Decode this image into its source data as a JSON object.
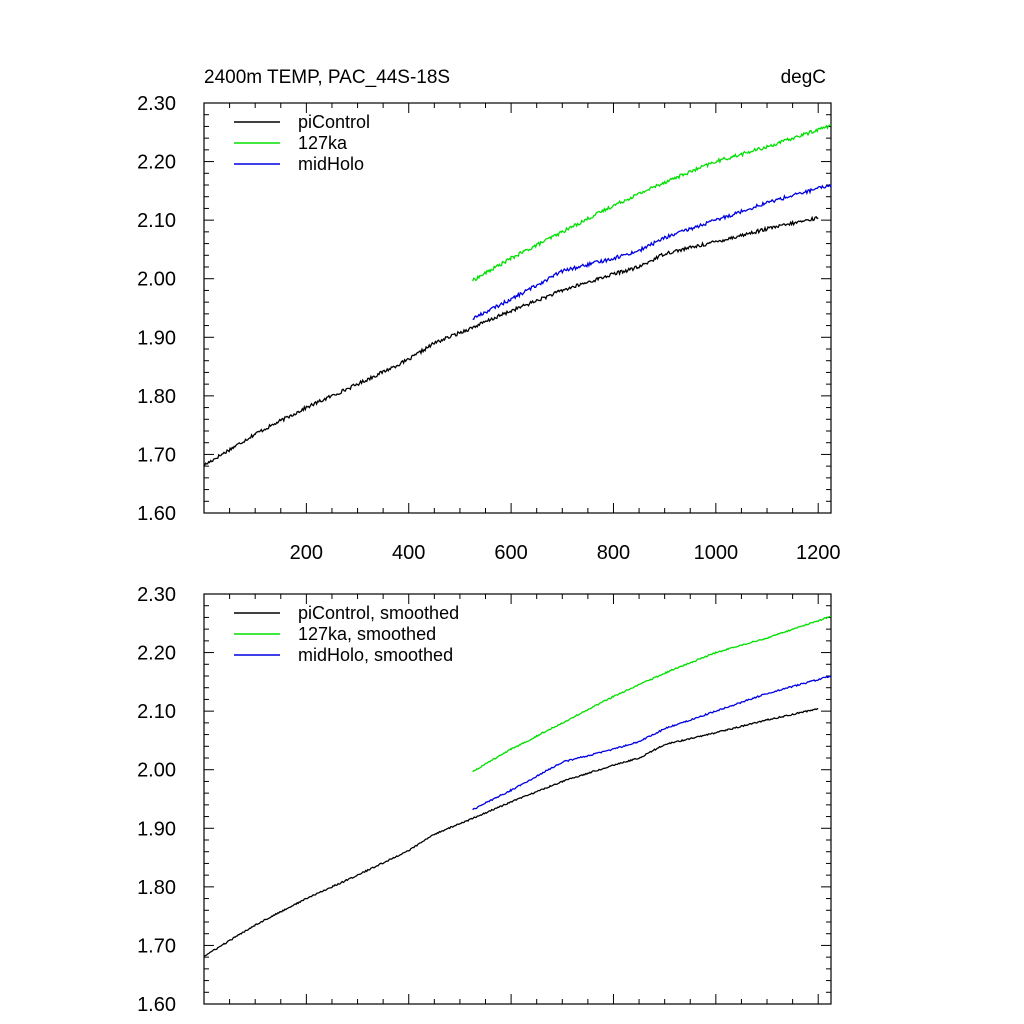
{
  "colors": {
    "piControl": "#000000",
    "127ka": "#00e000",
    "midHolo": "#0000e0"
  },
  "chart_data": [
    {
      "type": "line",
      "title_left": "2400m TEMP, PAC_44S-18S",
      "title_right": "degC",
      "xlim": [
        0,
        1225
      ],
      "ylim": [
        1.6,
        2.3
      ],
      "grid": false,
      "legend_position": "top-left",
      "x_ticks": [
        200,
        400,
        600,
        800,
        1000,
        1200
      ],
      "x_tick_labels": [
        "200",
        "400",
        "600",
        "800",
        "1000",
        "1200"
      ],
      "y_ticks": [
        1.6,
        1.7,
        1.8,
        1.9,
        2.0,
        2.1,
        2.2,
        2.3
      ],
      "y_tick_labels": [
        "1.60",
        "1.70",
        "1.80",
        "1.90",
        "2.00",
        "2.10",
        "2.20",
        "2.30"
      ],
      "series": [
        {
          "name": "piControl",
          "color_key": "piControl",
          "x": [
            1,
            100,
            200,
            300,
            400,
            450,
            520,
            600,
            700,
            800,
            850,
            900,
            1000,
            1100,
            1200
          ],
          "y": [
            1.682,
            1.735,
            1.78,
            1.82,
            1.862,
            1.89,
            1.915,
            1.945,
            1.98,
            2.008,
            2.02,
            2.043,
            2.063,
            2.085,
            2.104
          ]
        },
        {
          "name": "127ka",
          "color_key": "127ka",
          "x": [
            525,
            600,
            700,
            800,
            900,
            1000,
            1100,
            1225
          ],
          "y": [
            1.997,
            2.035,
            2.08,
            2.125,
            2.165,
            2.2,
            2.225,
            2.262
          ]
        },
        {
          "name": "midHolo",
          "color_key": "midHolo",
          "x": [
            525,
            600,
            700,
            800,
            850,
            900,
            1000,
            1100,
            1225
          ],
          "y": [
            1.932,
            1.965,
            2.013,
            2.035,
            2.048,
            2.07,
            2.1,
            2.13,
            2.16
          ]
        }
      ]
    },
    {
      "type": "line",
      "xlim": [
        0,
        1225
      ],
      "ylim": [
        1.6,
        2.3
      ],
      "grid": false,
      "legend_position": "top-left",
      "x_ticks": [
        200,
        400,
        600,
        800,
        1000,
        1200
      ],
      "x_tick_labels": [],
      "y_ticks": [
        1.6,
        1.7,
        1.8,
        1.9,
        2.0,
        2.1,
        2.2,
        2.3
      ],
      "y_tick_labels": [
        "1.60",
        "1.70",
        "1.80",
        "1.90",
        "2.00",
        "2.10",
        "2.20",
        "2.30"
      ],
      "series": [
        {
          "name": "piControl, smoothed",
          "color_key": "piControl",
          "x": [
            1,
            100,
            200,
            300,
            400,
            450,
            520,
            600,
            700,
            800,
            850,
            900,
            1000,
            1100,
            1200
          ],
          "y": [
            1.682,
            1.735,
            1.78,
            1.82,
            1.862,
            1.89,
            1.915,
            1.945,
            1.98,
            2.008,
            2.02,
            2.043,
            2.063,
            2.085,
            2.104
          ]
        },
        {
          "name": "127ka, smoothed",
          "color_key": "127ka",
          "x": [
            525,
            600,
            700,
            800,
            900,
            1000,
            1100,
            1225
          ],
          "y": [
            1.997,
            2.035,
            2.08,
            2.125,
            2.165,
            2.2,
            2.225,
            2.262
          ]
        },
        {
          "name": "midHolo, smoothed",
          "color_key": "midHolo",
          "x": [
            525,
            600,
            700,
            800,
            850,
            900,
            1000,
            1100,
            1225
          ],
          "y": [
            1.932,
            1.965,
            2.013,
            2.035,
            2.048,
            2.07,
            2.1,
            2.13,
            2.16
          ]
        }
      ]
    }
  ]
}
